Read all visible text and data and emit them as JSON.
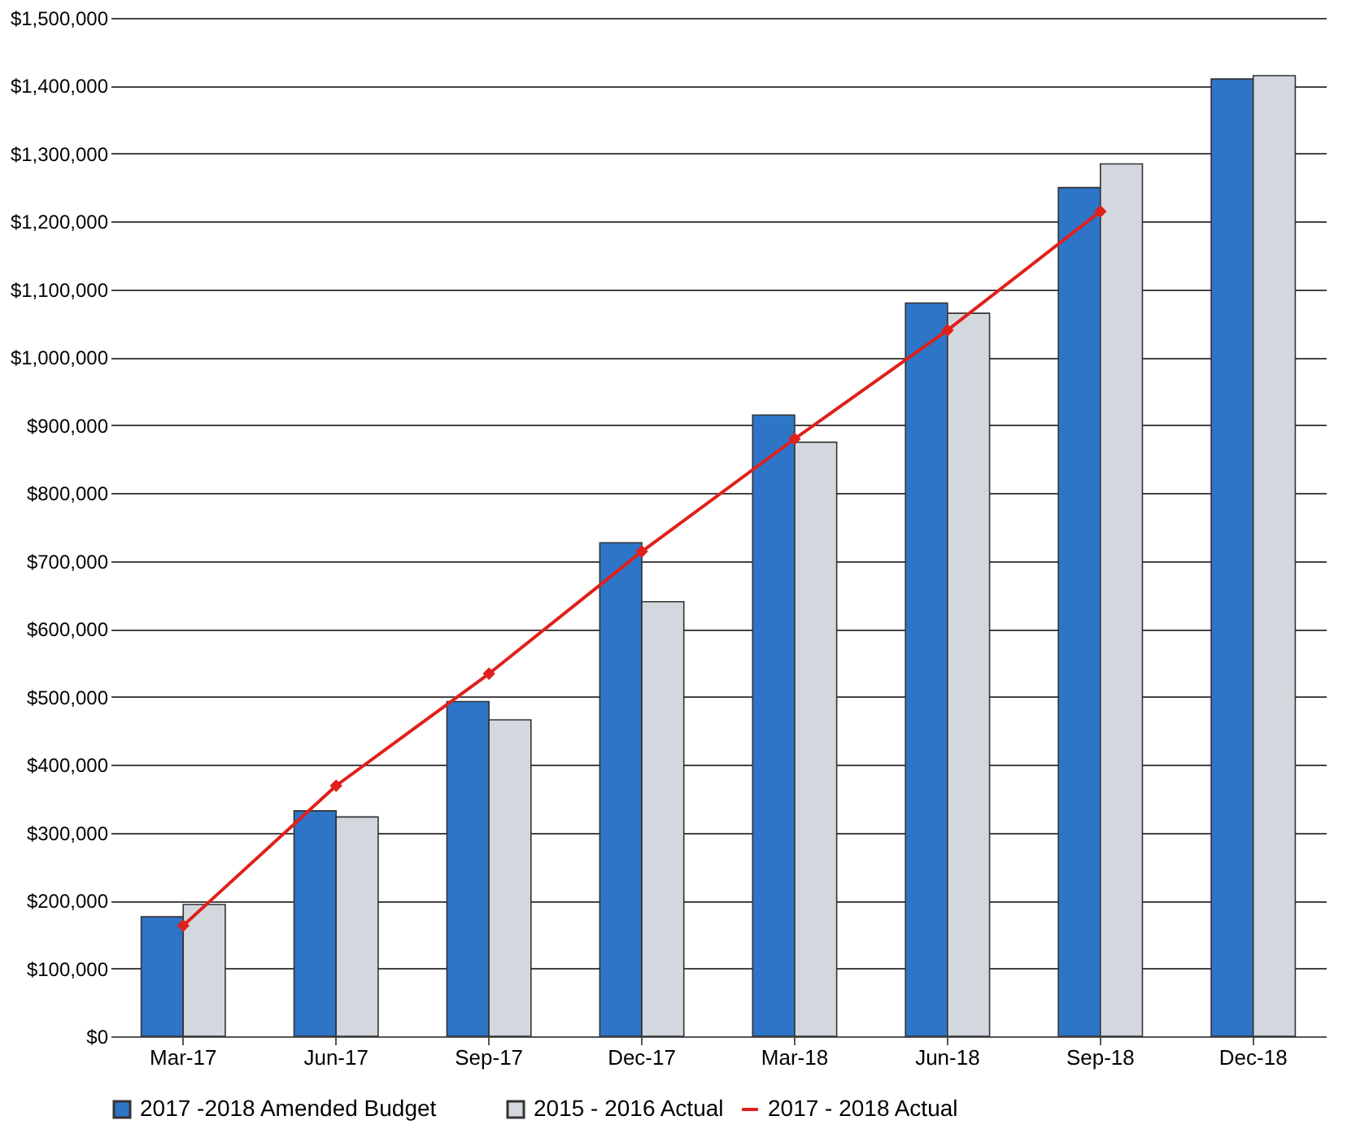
{
  "chart_data": {
    "type": "bar",
    "categories": [
      "Mar-17",
      "Jun-17",
      "Sep-17",
      "Dec-17",
      "Mar-18",
      "Jun-18",
      "Sep-18",
      "Dec-18"
    ],
    "series": [
      {
        "name": "2017 -2018 Amended Budget",
        "color": "#2e75c8",
        "values": [
          176000,
          332000,
          493000,
          727000,
          915000,
          1080000,
          1250000,
          1410000
        ]
      },
      {
        "name": "2015 - 2016 Actual",
        "color": "#d3d8de",
        "values": [
          194000,
          323000,
          466000,
          640000,
          875000,
          1065000,
          1285000,
          1415000
        ]
      },
      {
        "name": "2017 - 2018 Actual",
        "type": "line",
        "color": "#e0201b",
        "marker": "diamond",
        "values": [
          163000,
          369000,
          534000,
          714000,
          880000,
          1040000,
          1215000,
          null
        ]
      }
    ],
    "ylim": [
      0,
      1500000
    ],
    "yticks": [
      {
        "value": 0,
        "label": "$0"
      },
      {
        "value": 100000,
        "label": "$100,000"
      },
      {
        "value": 200000,
        "label": "$200,000"
      },
      {
        "value": 300000,
        "label": "$300,000"
      },
      {
        "value": 400000,
        "label": "$400,000"
      },
      {
        "value": 500000,
        "label": "$500,000"
      },
      {
        "value": 600000,
        "label": "$600,000"
      },
      {
        "value": 700000,
        "label": "$700,000"
      },
      {
        "value": 800000,
        "label": "$800,000"
      },
      {
        "value": 900000,
        "label": "$900,000"
      },
      {
        "value": 1000000,
        "label": "$1,000,000"
      },
      {
        "value": 1100000,
        "label": "$1,100,000"
      },
      {
        "value": 1200000,
        "label": "$1,200,000"
      },
      {
        "value": 1300000,
        "label": "$1,300,000"
      },
      {
        "value": 1400000,
        "label": "$1,400,000"
      },
      {
        "value": 1500000,
        "label": "$1,500,000"
      }
    ],
    "grid": "y",
    "legend": "bottom"
  }
}
